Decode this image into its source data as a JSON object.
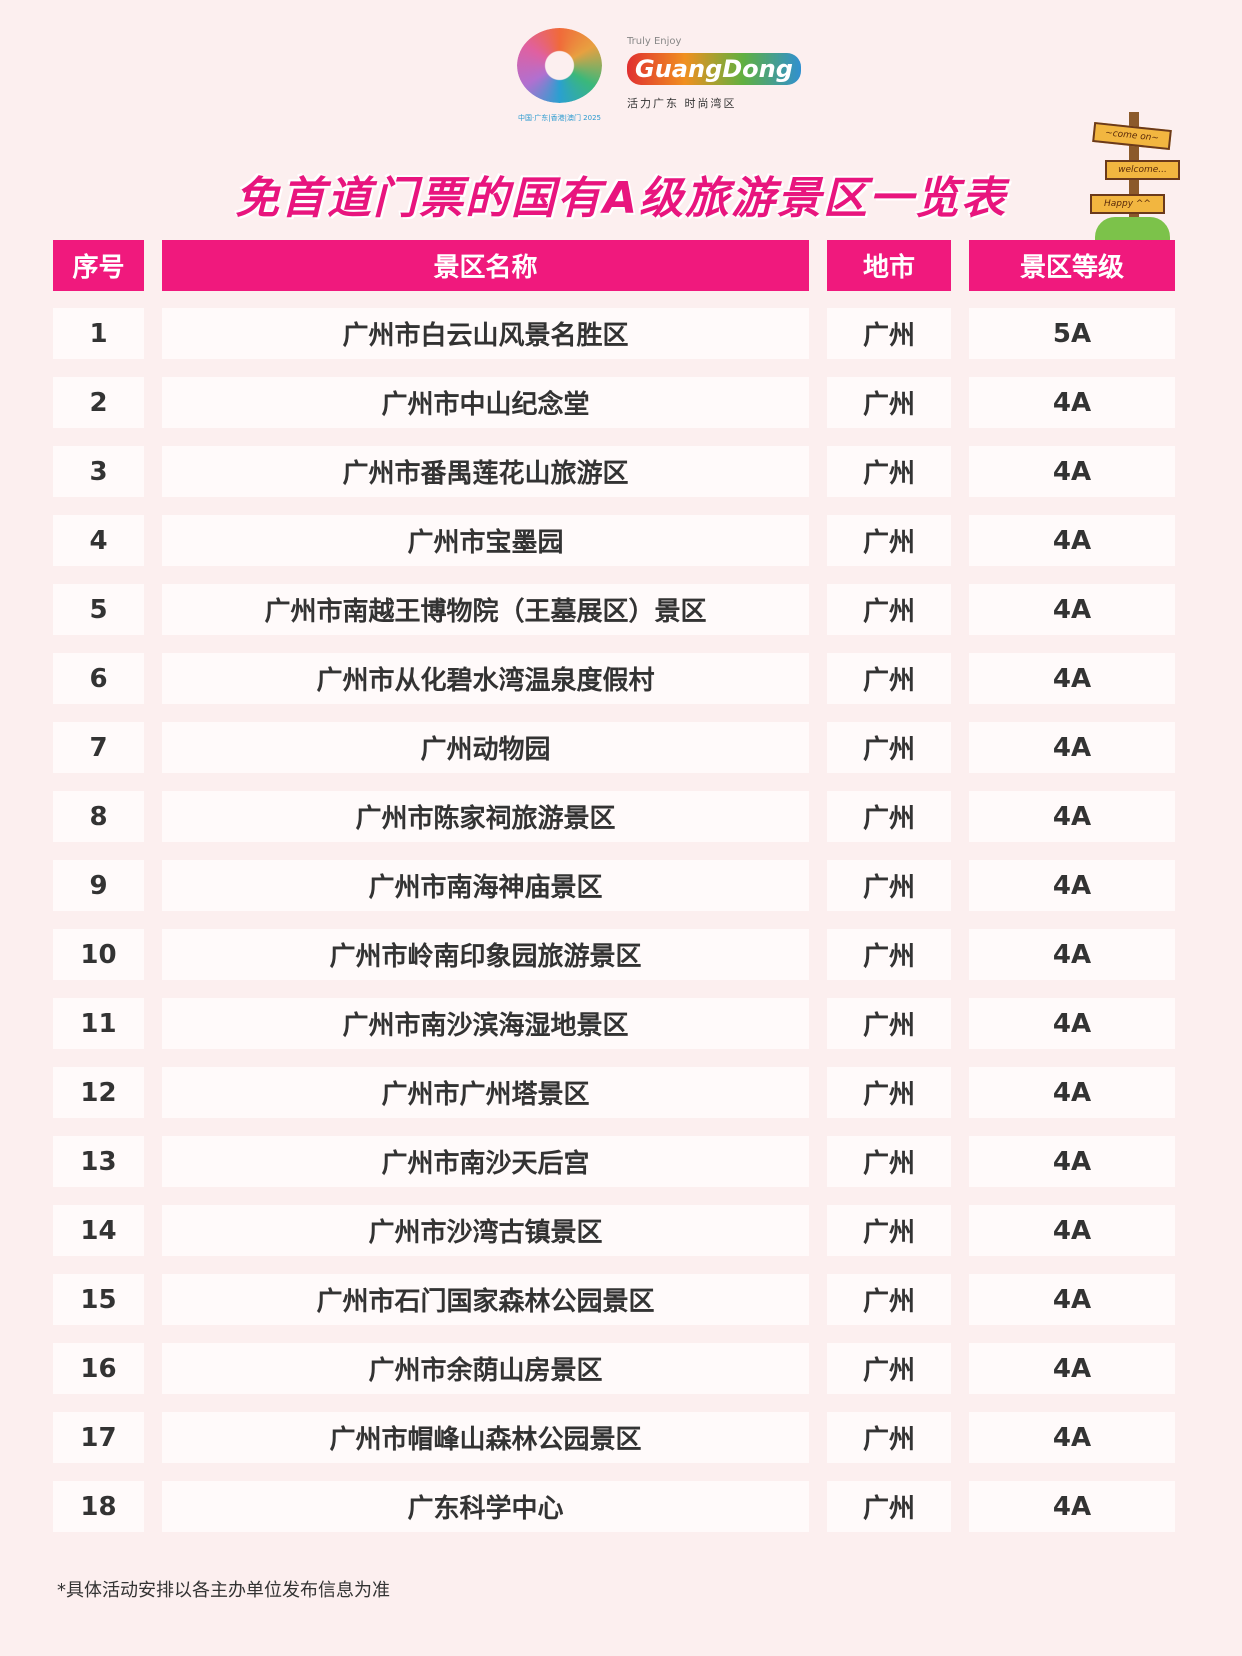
{
  "logos": {
    "expo_caption": "中国·广东|香港|澳门 2025",
    "truly_enjoy": "Truly Enjoy",
    "brand": "GuangDong",
    "slogan": "活力广东 时尚湾区",
    "sign_boards": [
      "~come on~",
      "welcome...",
      "Happy ^^"
    ]
  },
  "title": "免首道门票的国有A级旅游景区一览表",
  "table": {
    "headers": [
      "序号",
      "景区名称",
      "地市",
      "景区等级"
    ],
    "rows": [
      [
        "1",
        "广州市白云山风景名胜区",
        "广州",
        "5A"
      ],
      [
        "2",
        "广州市中山纪念堂",
        "广州",
        "4A"
      ],
      [
        "3",
        "广州市番禺莲花山旅游区",
        "广州",
        "4A"
      ],
      [
        "4",
        "广州市宝墨园",
        "广州",
        "4A"
      ],
      [
        "5",
        "广州市南越王博物院（王墓展区）景区",
        "广州",
        "4A"
      ],
      [
        "6",
        "广州市从化碧水湾温泉度假村",
        "广州",
        "4A"
      ],
      [
        "7",
        "广州动物园",
        "广州",
        "4A"
      ],
      [
        "8",
        "广州市陈家祠旅游景区",
        "广州",
        "4A"
      ],
      [
        "9",
        "广州市南海神庙景区",
        "广州",
        "4A"
      ],
      [
        "10",
        "广州市岭南印象园旅游景区",
        "广州",
        "4A"
      ],
      [
        "11",
        "广州市南沙滨海湿地景区",
        "广州",
        "4A"
      ],
      [
        "12",
        "广州市广州塔景区",
        "广州",
        "4A"
      ],
      [
        "13",
        "广州市南沙天后宫",
        "广州",
        "4A"
      ],
      [
        "14",
        "广州市沙湾古镇景区",
        "广州",
        "4A"
      ],
      [
        "15",
        "广州市石门国家森林公园景区",
        "广州",
        "4A"
      ],
      [
        "16",
        "广州市余荫山房景区",
        "广州",
        "4A"
      ],
      [
        "17",
        "广州市帽峰山森林公园景区",
        "广州",
        "4A"
      ],
      [
        "18",
        "广东科学中心",
        "广州",
        "4A"
      ]
    ]
  },
  "footnote": "*具体活动安排以各主办单位发布信息为准",
  "colors": {
    "accent": "#f0197d",
    "background": "#fcefef",
    "cell": "#fffafa"
  }
}
